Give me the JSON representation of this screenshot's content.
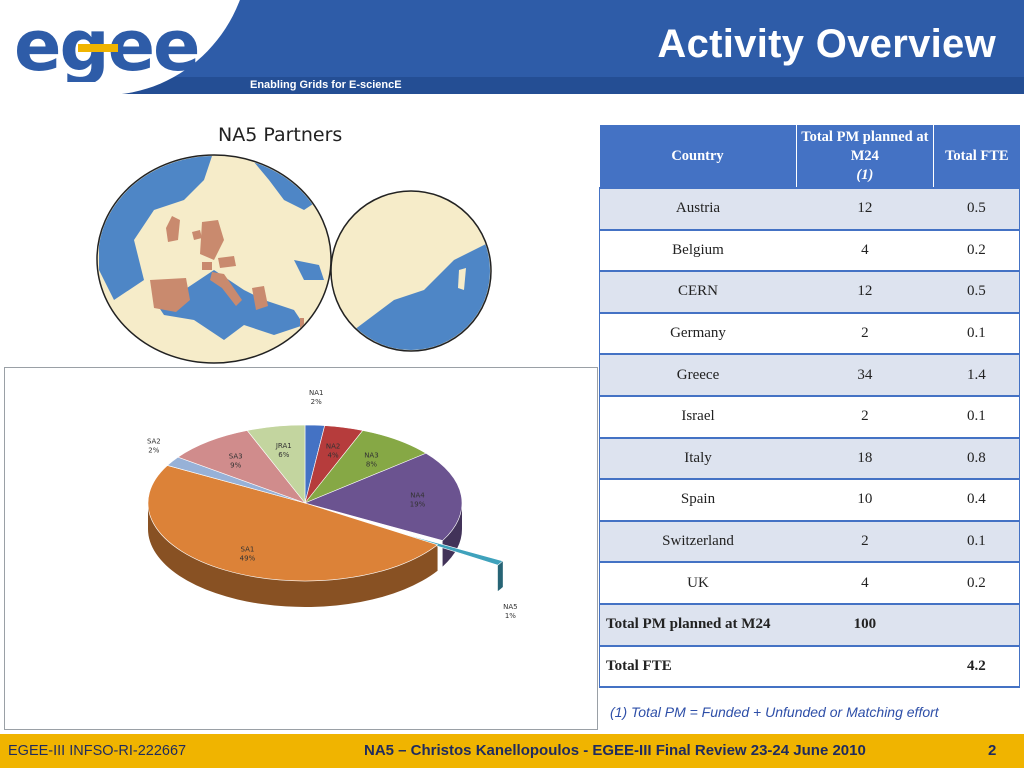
{
  "header": {
    "logo_text": "egee",
    "tagline": "Enabling Grids for E-sciencE",
    "title": "Activity Overview"
  },
  "map": {
    "title": "NA5 Partners"
  },
  "chart_data": {
    "type": "pie",
    "title": "",
    "categories": [
      "NA1",
      "NA2",
      "NA3",
      "NA4",
      "NA5",
      "SA1",
      "SA2",
      "SA3",
      "JRA1"
    ],
    "values": [
      2,
      4,
      8,
      19,
      1,
      49,
      2,
      9,
      6
    ],
    "labels": [
      "2%",
      "4%",
      "8%",
      "19%",
      "1%",
      "49%",
      "2%",
      "9%",
      "6%"
    ],
    "colors": {
      "NA1": "#4472c4",
      "NA2": "#b63c3c",
      "NA3": "#86a845",
      "NA4": "#6b5390",
      "NA5": "#3fa2bc",
      "SA1": "#dc8238",
      "SA2": "#97b1d7",
      "SA3": "#d08c8c",
      "JRA1": "#c3d59f"
    },
    "exploded": "NA5",
    "three_d": true
  },
  "table": {
    "headers": [
      "Country",
      "Total PM planned at M24",
      "(1)",
      "Total FTE"
    ],
    "rows": [
      [
        "Austria",
        "12",
        "0.5"
      ],
      [
        "Belgium",
        "4",
        "0.2"
      ],
      [
        "CERN",
        "12",
        "0.5"
      ],
      [
        "Germany",
        "2",
        "0.1"
      ],
      [
        "Greece",
        "34",
        "1.4"
      ],
      [
        "Israel",
        "2",
        "0.1"
      ],
      [
        "Italy",
        "18",
        "0.8"
      ],
      [
        "Spain",
        "10",
        "0.4"
      ],
      [
        "Switzerland",
        "2",
        "0.1"
      ],
      [
        "UK",
        "4",
        "0.2"
      ]
    ],
    "total_pm_label": "Total PM planned at M24",
    "total_pm_value": "100",
    "total_fte_label": "Total FTE",
    "total_fte_value": "4.2"
  },
  "footnote": "(1) Total PM = Funded + Unfunded or Matching effort",
  "footer": {
    "left": "EGEE-III INFSO-RI-222667",
    "center": "NA5 – Christos Kanellopoulos - EGEE-III Final Review 23-24 June 2010",
    "page": "2"
  }
}
